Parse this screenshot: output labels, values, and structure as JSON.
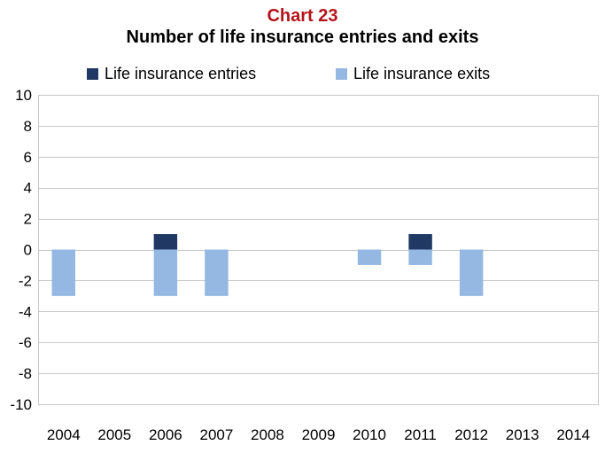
{
  "chart_label": "Chart 23",
  "chart_title": "Number of life insurance entries and exits",
  "legend": [
    {
      "label": "Life insurance entries",
      "color": "#1f3864"
    },
    {
      "label": "Life insurance exits",
      "color": "#95b8e3"
    }
  ],
  "chart_data": {
    "type": "bar",
    "stacked": true,
    "title": "Number of life insurance entries and exits",
    "xlabel": "",
    "ylabel": "",
    "categories": [
      "2004",
      "2005",
      "2006",
      "2007",
      "2008",
      "2009",
      "2010",
      "2011",
      "2012",
      "2013",
      "2014"
    ],
    "series": [
      {
        "name": "Life insurance entries",
        "color": "#1f3864",
        "values": [
          0,
          0,
          1,
          0,
          0,
          0,
          0,
          1,
          0,
          0,
          0
        ]
      },
      {
        "name": "Life insurance exits",
        "color": "#95b8e3",
        "values": [
          -3,
          0,
          -3,
          -3,
          0,
          0,
          -1,
          -1,
          -3,
          0,
          0
        ]
      }
    ],
    "ylim": [
      -10,
      10
    ],
    "yticks": [
      10,
      8,
      6,
      4,
      2,
      0,
      -2,
      -4,
      -6,
      -8,
      -10
    ],
    "grid": true,
    "legend_position": "top"
  }
}
